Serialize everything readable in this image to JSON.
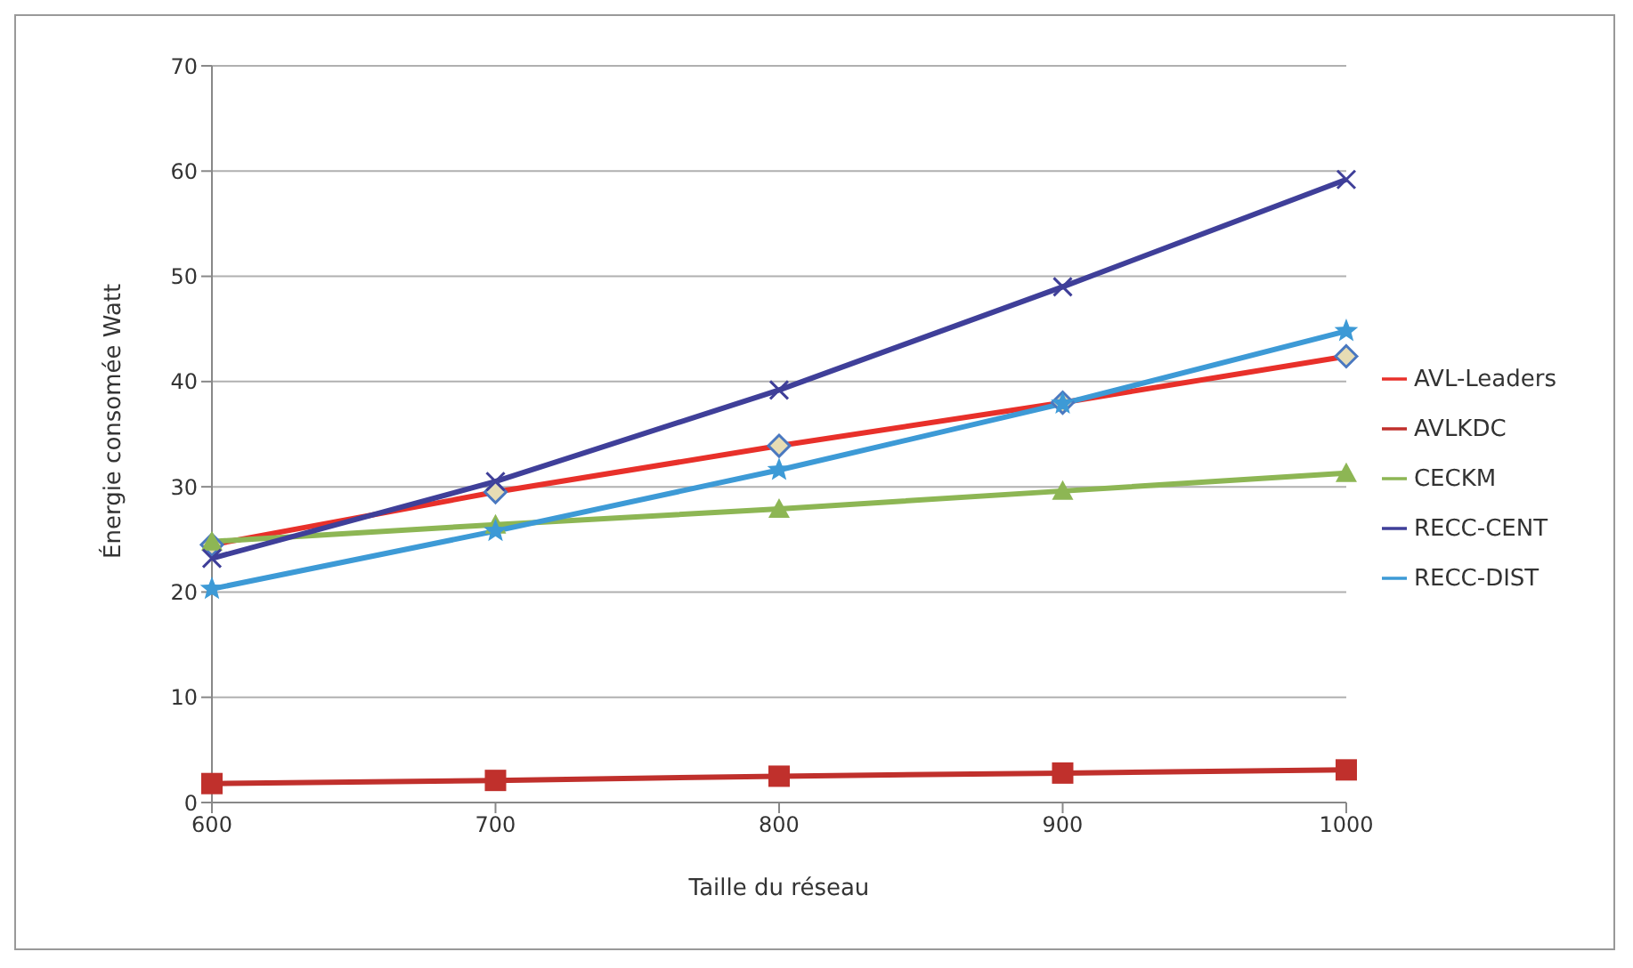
{
  "chart_data": {
    "type": "line",
    "xlabel": "Taille du réseau",
    "ylabel": "Énergie consomée Watt",
    "categories": [
      "600",
      "700",
      "800",
      "900",
      "1000"
    ],
    "ylim": [
      0,
      70
    ],
    "yticks": [
      0,
      10,
      20,
      30,
      40,
      50,
      60,
      70
    ],
    "grid": "y",
    "legend": "right",
    "series": [
      {
        "name": "AVL-Leaders",
        "color": "#e8302a",
        "marker": "diamond",
        "values": [
          24.5,
          29.5,
          33.9,
          38.0,
          42.4
        ]
      },
      {
        "name": "AVLKDC",
        "color": "#c0302c",
        "marker": "square",
        "values": [
          1.8,
          2.1,
          2.5,
          2.8,
          3.1
        ]
      },
      {
        "name": "CECKM",
        "color": "#8db654",
        "marker": "triangle",
        "values": [
          24.8,
          26.4,
          27.9,
          29.6,
          31.3
        ]
      },
      {
        "name": "RECC-CENT",
        "color": "#3f3f99",
        "marker": "cross",
        "values": [
          23.2,
          30.5,
          39.2,
          49.0,
          59.2
        ]
      },
      {
        "name": "RECC-DIST",
        "color": "#3d9ad6",
        "marker": "star",
        "values": [
          20.3,
          25.8,
          31.6,
          37.9,
          44.8
        ]
      }
    ]
  }
}
